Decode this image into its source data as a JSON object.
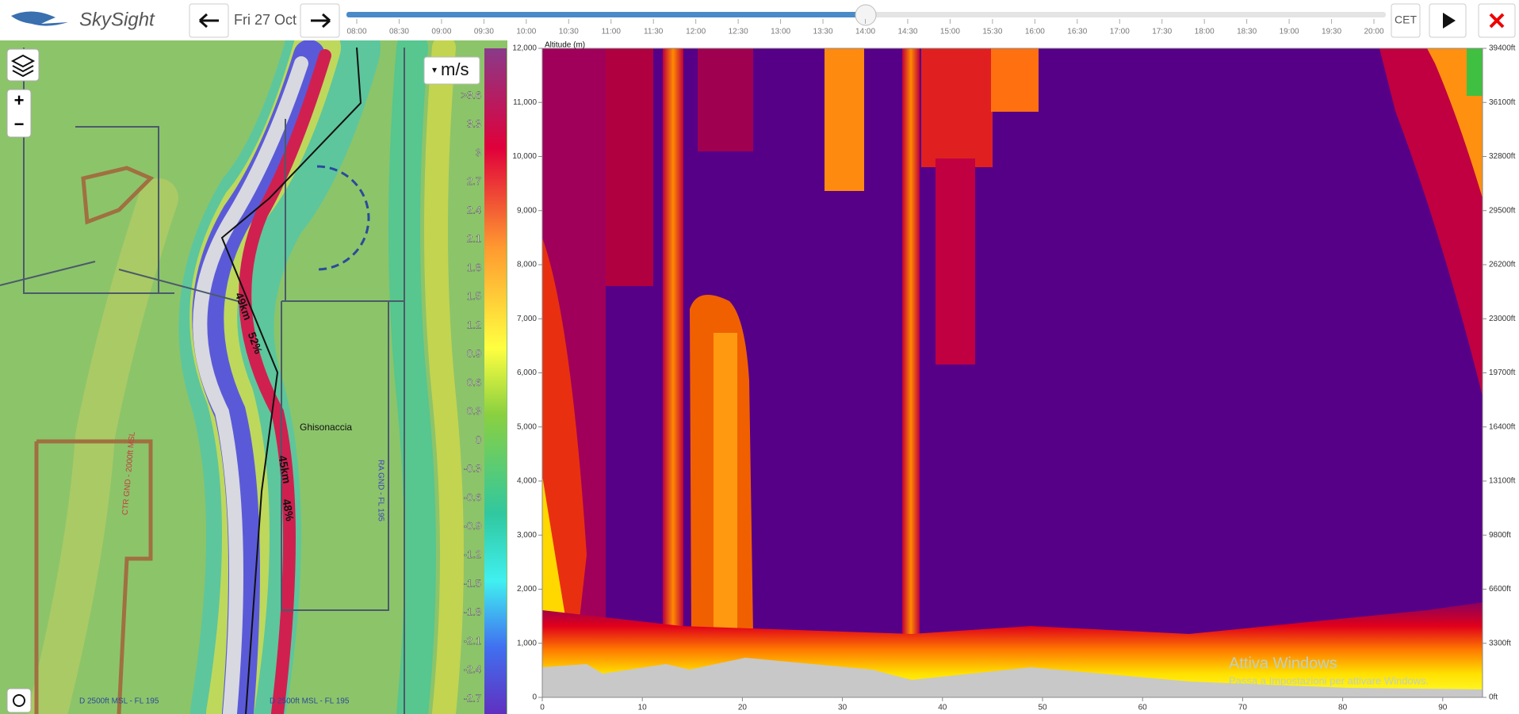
{
  "header": {
    "brand": "SkySight",
    "date": "Fri 27 Oct",
    "timezone": "CET",
    "times": [
      "08:00",
      "08:30",
      "09:00",
      "09:30",
      "10:00",
      "10:30",
      "11:00",
      "11:30",
      "12:00",
      "12:30",
      "13:00",
      "13:30",
      "14:00",
      "14:30",
      "15:00",
      "15:30",
      "16:00",
      "16:30",
      "17:00",
      "17:30",
      "18:00",
      "18:30",
      "19:00",
      "19:30",
      "20:00"
    ]
  },
  "map": {
    "unit": "m/s",
    "legend": [
      ">3.6",
      "3.3",
      "3",
      "2.7",
      "2.4",
      "2.1",
      "1.8",
      "1.5",
      "1.2",
      "0.9",
      "0.6",
      "0.3",
      "0",
      "-0.3",
      "-0.6",
      "-0.9",
      "-1.2",
      "-1.5",
      "-1.8",
      "-2.1",
      "-2.4",
      "-2.7"
    ],
    "labels": {
      "town": "Ghisonaccia",
      "dist1": "49km",
      "pct1": "52%",
      "dist2": "45km",
      "pct2": "48%",
      "airspace1": "D 2500ft MSL - FL 195",
      "airspace2": "D 2500ft MSL - FL 195",
      "airspace3": "CTR GND - 2000ft MSL",
      "airspace4": "RA GND - FL 195"
    }
  },
  "cross_section": {
    "y_label": "Altitude (m)",
    "yticks": [
      "0",
      "1,000",
      "2,000",
      "3,000",
      "4,000",
      "5,000",
      "6,000",
      "7,000",
      "8,000",
      "9,000",
      "10,000",
      "11,000",
      "12,000"
    ],
    "xticks": [
      "0",
      "10",
      "20",
      "30",
      "40",
      "50",
      "60",
      "70",
      "80",
      "90"
    ],
    "y2ticks": [
      "0ft",
      "3300ft",
      "6600ft",
      "9800ft",
      "13100ft",
      "16400ft",
      "19700ft",
      "23000ft",
      "26200ft",
      "29500ft",
      "32800ft",
      "36100ft",
      "39400ft"
    ]
  },
  "watermark": {
    "title": "Attiva Windows",
    "text": "Passa a Impostazioni per attivare Windows."
  }
}
